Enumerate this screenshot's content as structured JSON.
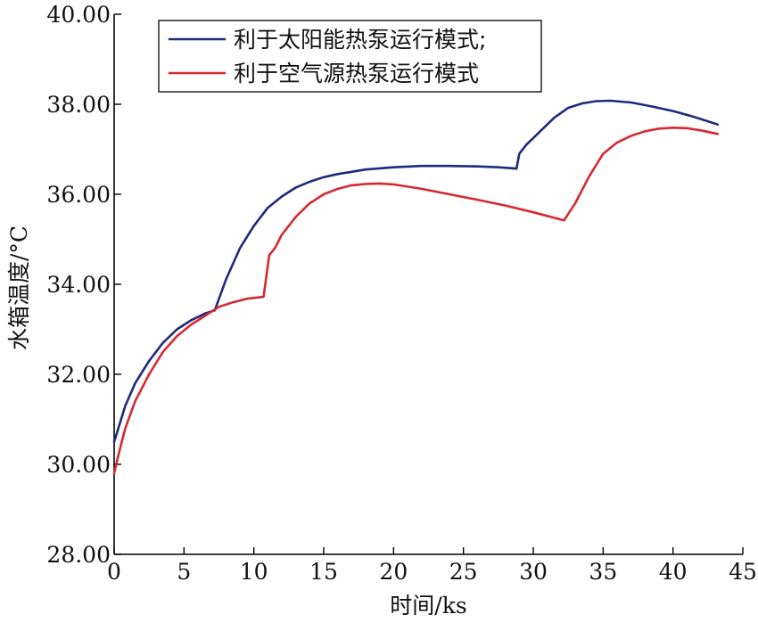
{
  "chart_data": {
    "type": "line",
    "title": "",
    "xlabel": "时间/ks",
    "ylabel": "水箱温度/°C",
    "xlim": [
      0,
      45
    ],
    "ylim": [
      28,
      40
    ],
    "xticks": [
      0,
      5,
      10,
      15,
      20,
      25,
      30,
      35,
      40,
      45
    ],
    "yticks": [
      28,
      30,
      32,
      34,
      36,
      38,
      40
    ],
    "ytick_labels": [
      "28.00",
      "30.00",
      "32.00",
      "34.00",
      "36.00",
      "38.00",
      "40.00"
    ],
    "grid": false,
    "legend_position": "top-left",
    "series": [
      {
        "name": "利于太阳能热泵运行模式;",
        "color": "#1f2a7c",
        "x": [
          0,
          0.3,
          0.8,
          1.5,
          2.5,
          3.5,
          4.5,
          5.5,
          6.5,
          7.2,
          8,
          9,
          10,
          11,
          12,
          13,
          14,
          15,
          16,
          17,
          18,
          20,
          22,
          24,
          26,
          27.5,
          28.8,
          29,
          29.5,
          30.5,
          31.5,
          32.5,
          33.5,
          34.5,
          35.5,
          37,
          38.5,
          40,
          41.5,
          43.2
        ],
        "y": [
          30.5,
          30.8,
          31.3,
          31.8,
          32.3,
          32.7,
          33.0,
          33.2,
          33.35,
          33.42,
          34.1,
          34.8,
          35.3,
          35.7,
          35.95,
          36.15,
          36.28,
          36.38,
          36.45,
          36.5,
          36.55,
          36.6,
          36.63,
          36.63,
          36.62,
          36.6,
          36.57,
          36.9,
          37.1,
          37.4,
          37.7,
          37.92,
          38.02,
          38.07,
          38.08,
          38.04,
          37.95,
          37.85,
          37.72,
          37.55
        ]
      },
      {
        "name": "利于空气源热泵运行模式",
        "color": "#d62a31",
        "x": [
          0,
          0.3,
          0.8,
          1.5,
          2.5,
          3.5,
          4.5,
          5.5,
          6.5,
          7.5,
          8.5,
          9.5,
          10.7,
          11.1,
          11.5,
          12,
          13,
          14,
          15,
          16,
          17,
          18,
          19,
          20,
          22,
          24,
          26,
          28,
          30,
          32.2,
          33,
          34,
          35,
          36,
          37,
          38,
          39,
          40,
          41,
          42,
          43.2
        ],
        "y": [
          29.8,
          30.2,
          30.8,
          31.4,
          32.0,
          32.5,
          32.85,
          33.1,
          33.3,
          33.5,
          33.6,
          33.68,
          33.72,
          34.65,
          34.8,
          35.1,
          35.5,
          35.8,
          36.0,
          36.12,
          36.2,
          36.23,
          36.24,
          36.22,
          36.12,
          36.0,
          35.88,
          35.75,
          35.6,
          35.42,
          35.8,
          36.4,
          36.9,
          37.15,
          37.3,
          37.4,
          37.46,
          37.48,
          37.47,
          37.42,
          37.34
        ]
      }
    ]
  }
}
